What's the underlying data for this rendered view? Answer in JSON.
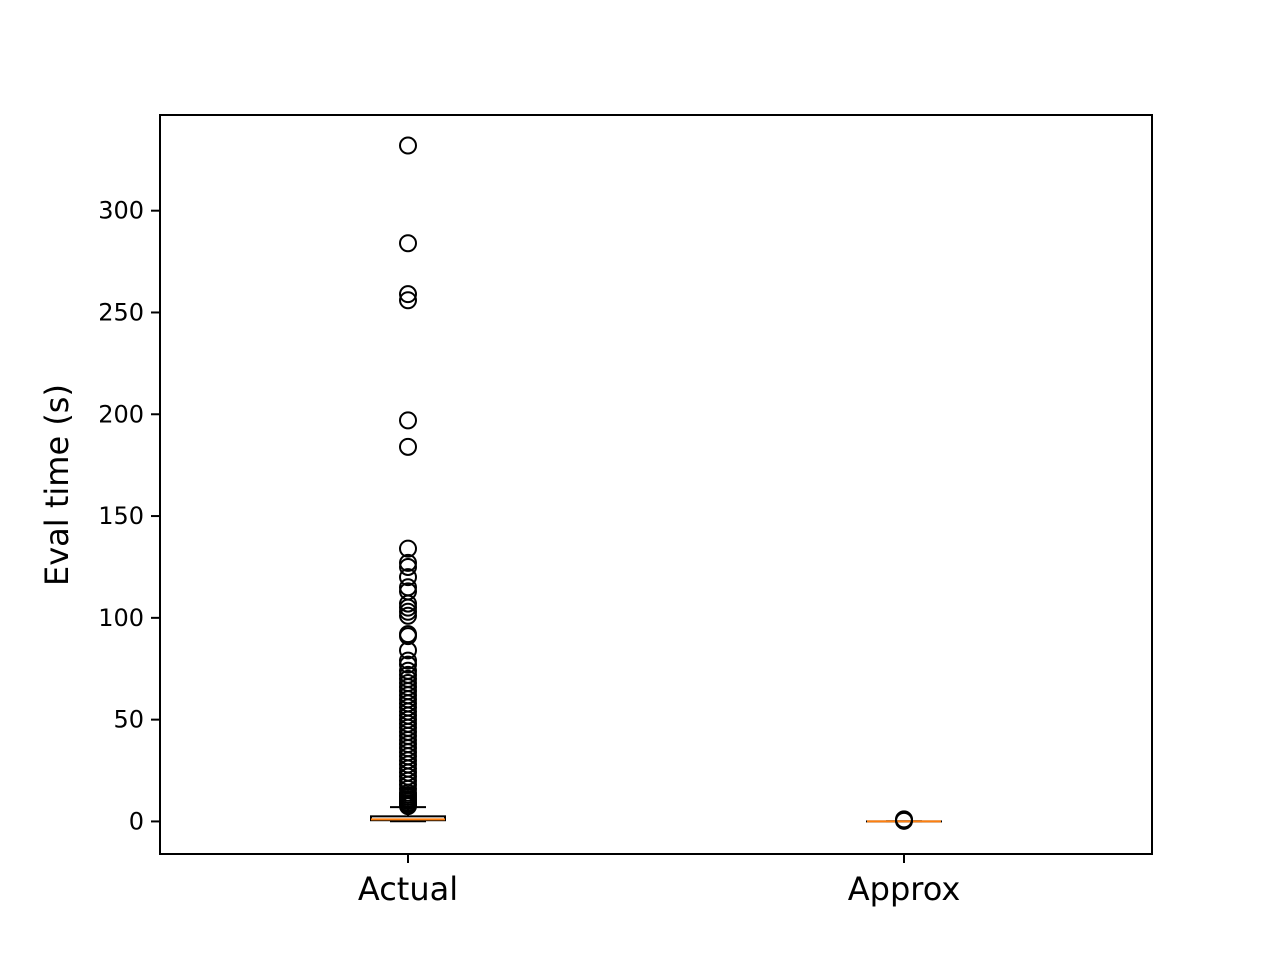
{
  "chart_data": {
    "type": "box",
    "title": "",
    "xlabel": "",
    "ylabel": "Eval time (s)",
    "categories": [
      "Actual",
      "Approx"
    ],
    "ylim": [
      -16,
      347
    ],
    "yticks": [
      0,
      50,
      100,
      150,
      200,
      250,
      300
    ],
    "grid": false,
    "colors": {
      "box": "#000000",
      "median": "#ff7f0e",
      "flier": "#000000"
    },
    "series": [
      {
        "category": "Actual",
        "whisker_low": 0.1,
        "q1": 0.6,
        "median": 1.0,
        "q3": 2.5,
        "whisker_high": 7,
        "outliers": [
          332,
          284,
          259,
          256,
          197,
          184,
          134,
          127,
          125,
          120,
          115,
          113,
          107,
          105,
          103,
          101,
          92,
          91,
          84,
          79,
          77,
          74,
          72,
          70,
          68,
          66,
          64,
          62,
          60,
          58,
          56,
          54,
          52,
          50,
          48,
          46,
          44,
          42,
          40,
          38,
          36,
          34,
          32,
          30,
          28,
          26,
          24,
          22,
          20,
          18,
          16,
          14,
          13,
          12,
          11,
          10,
          9,
          8.5,
          8,
          7.5
        ]
      },
      {
        "category": "Approx",
        "whisker_low": 0,
        "q1": 0,
        "median": 0,
        "q3": 0,
        "whisker_high": 0,
        "outliers": [
          0.3,
          0.6,
          1.0
        ]
      }
    ]
  }
}
